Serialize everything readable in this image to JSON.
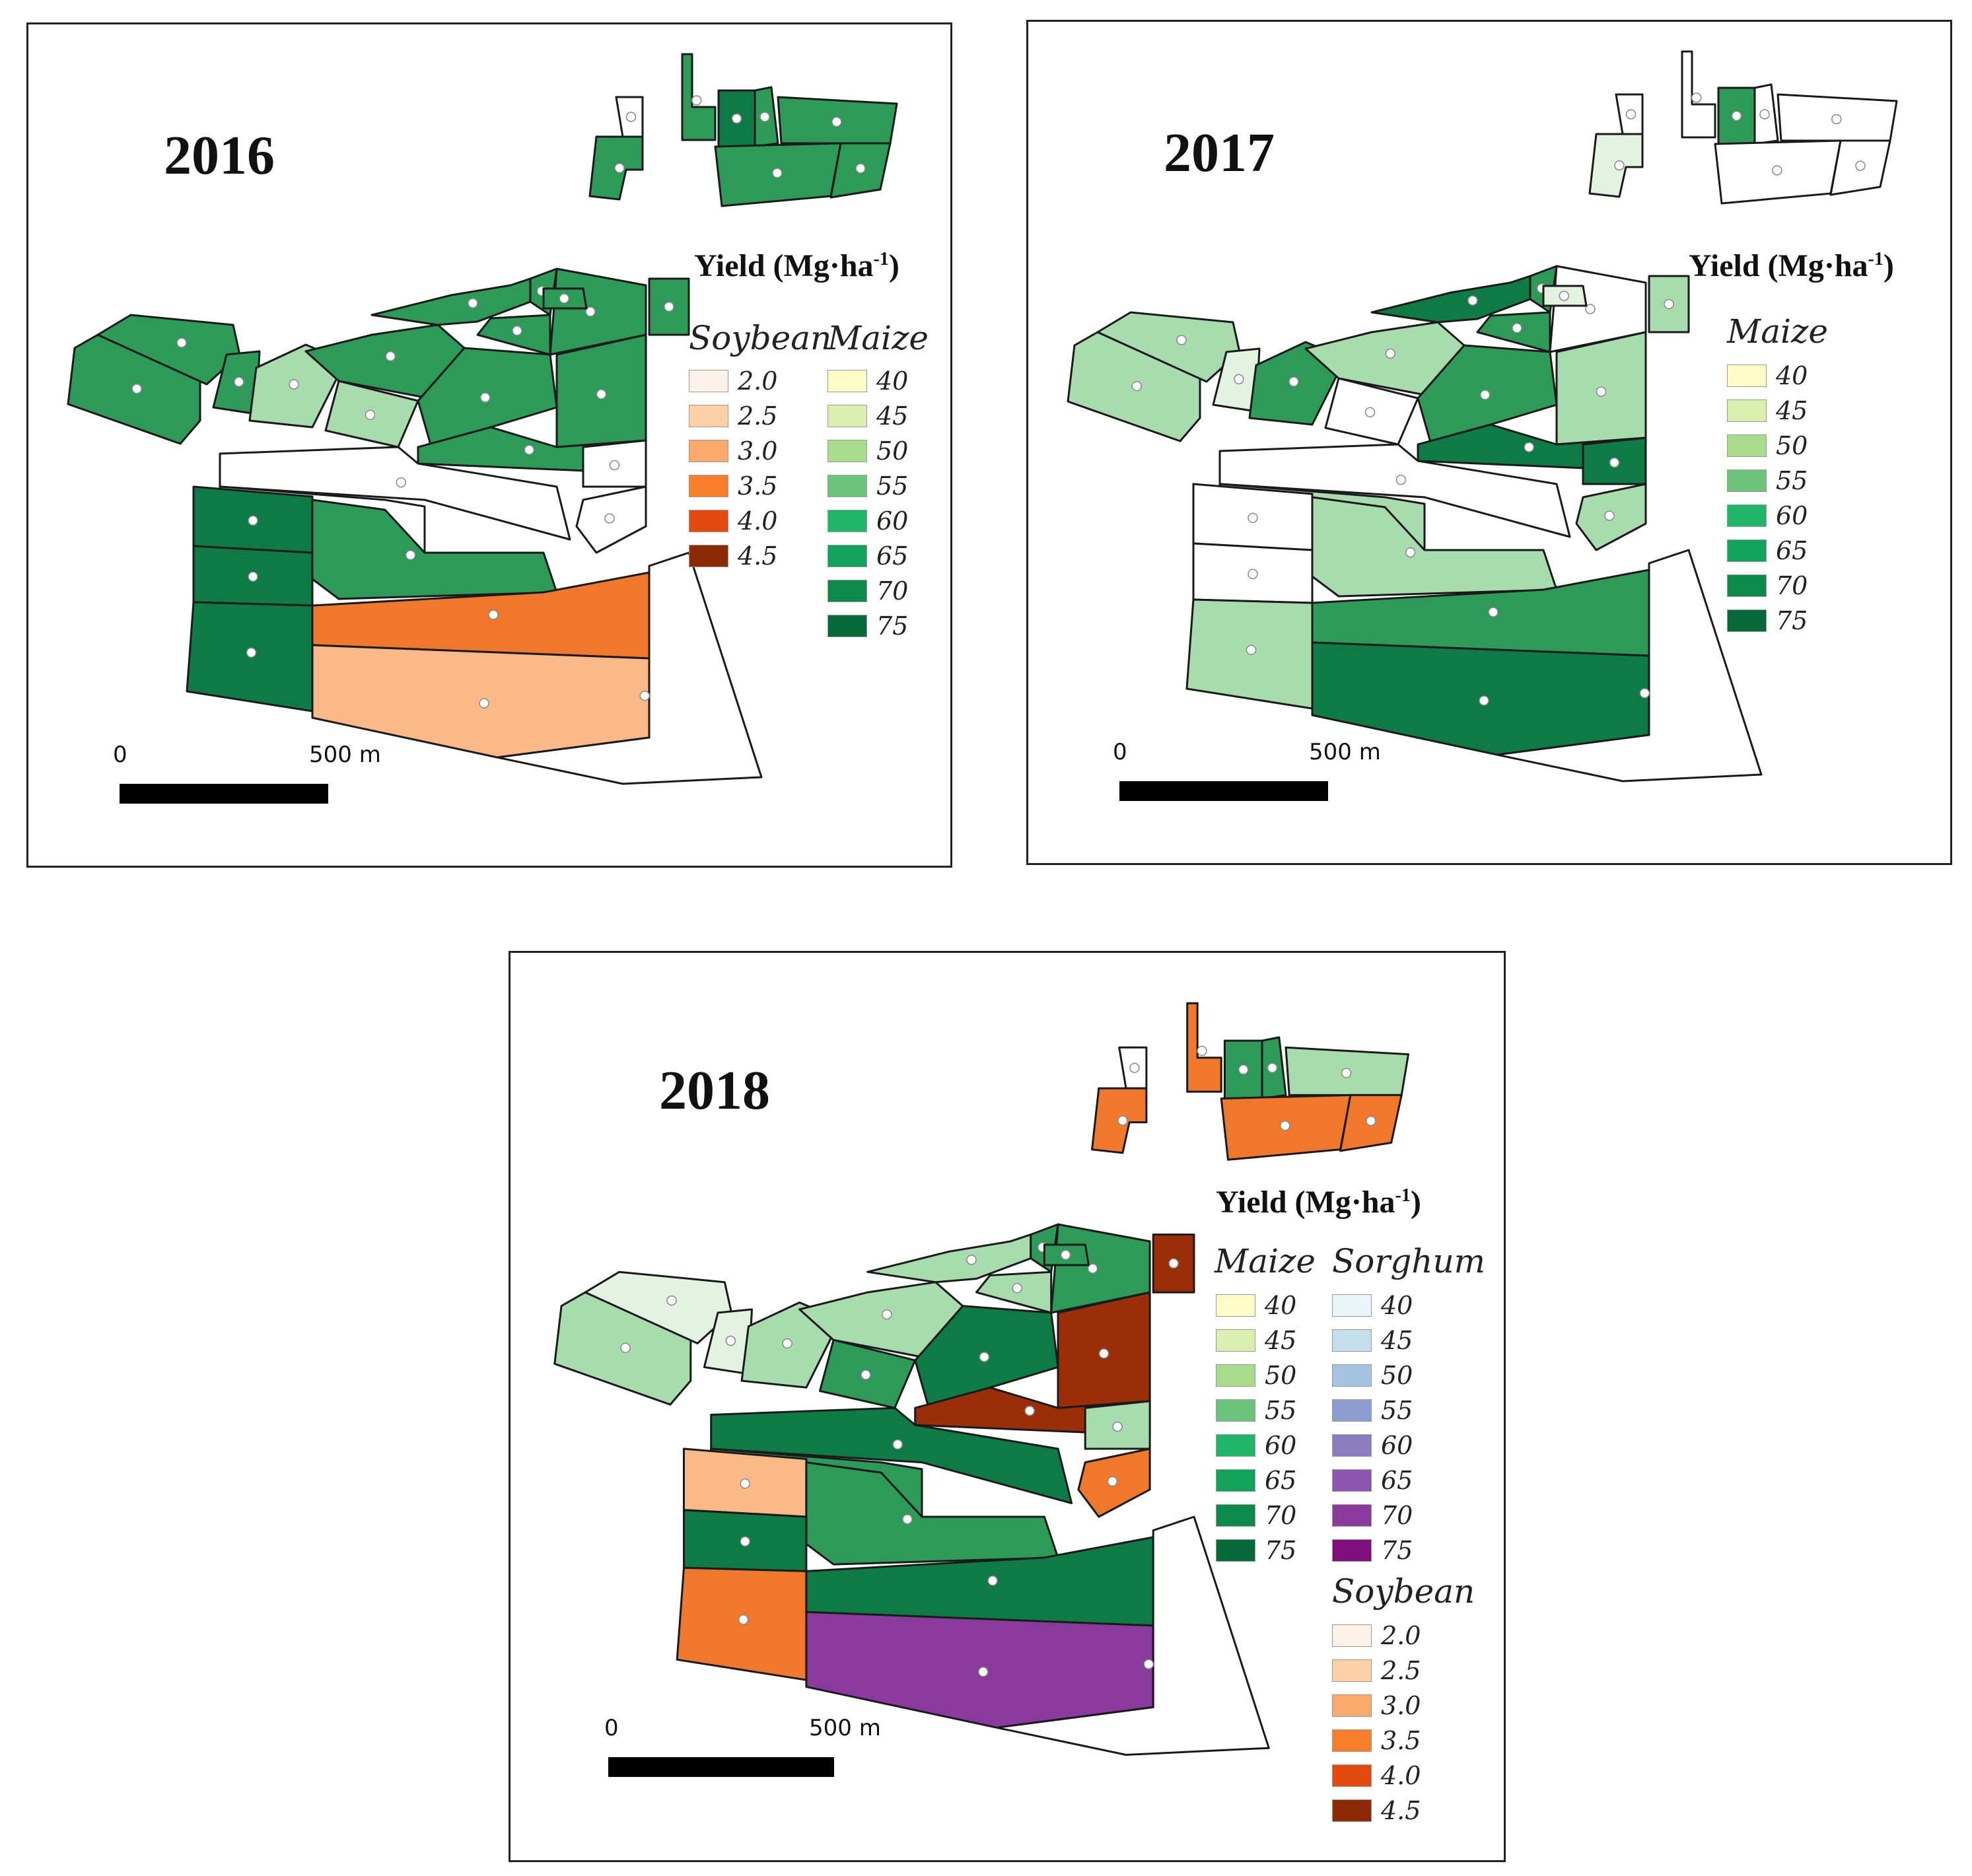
{
  "panels": {
    "p2016": {
      "year": "2016",
      "yield_title": "Yield (Mg·ha",
      "yield_sup": "-1",
      "yield_close": ")",
      "legend_cols": [
        {
          "title": "Soybean",
          "items": [
            {
              "v": "2.0",
              "c": "#fdf0e6"
            },
            {
              "v": "2.5",
              "c": "#fdd0a8"
            },
            {
              "v": "3.0",
              "c": "#fcaa6c"
            },
            {
              "v": "3.5",
              "c": "#f97e2c"
            },
            {
              "v": "4.0",
              "c": "#e34a0e"
            },
            {
              "v": "4.5",
              "c": "#8c2a06"
            }
          ]
        },
        {
          "title": "Maize",
          "items": [
            {
              "v": "40",
              "c": "#fdfcc8"
            },
            {
              "v": "45",
              "c": "#d8efb0"
            },
            {
              "v": "50",
              "c": "#a6dc8c"
            },
            {
              "v": "55",
              "c": "#6cc47c"
            },
            {
              "v": "60",
              "c": "#1fb66a"
            },
            {
              "v": "65",
              "c": "#12a25c"
            },
            {
              "v": "70",
              "c": "#0b8a4c"
            },
            {
              "v": "75",
              "c": "#06693a"
            }
          ]
        }
      ],
      "scale": {
        "zero": "0",
        "label": "500 m"
      }
    },
    "p2017": {
      "year": "2017",
      "yield_title": "Yield (Mg·ha",
      "yield_sup": "-1",
      "yield_close": ")",
      "legend_cols": [
        {
          "title": "Maize",
          "items": [
            {
              "v": "40",
              "c": "#fdfcc8"
            },
            {
              "v": "45",
              "c": "#d8efb0"
            },
            {
              "v": "50",
              "c": "#a6dc8c"
            },
            {
              "v": "55",
              "c": "#6cc47c"
            },
            {
              "v": "60",
              "c": "#1fb66a"
            },
            {
              "v": "65",
              "c": "#12a25c"
            },
            {
              "v": "70",
              "c": "#0b8a4c"
            },
            {
              "v": "75",
              "c": "#06693a"
            }
          ]
        }
      ],
      "scale": {
        "zero": "0",
        "label": "500 m"
      }
    },
    "p2018": {
      "year": "2018",
      "yield_title": "Yield (Mg·ha",
      "yield_sup": "-1",
      "yield_close": ")",
      "legend_cols": [
        {
          "title": "Maize",
          "items": [
            {
              "v": "40",
              "c": "#fdfcc8"
            },
            {
              "v": "45",
              "c": "#d8efb0"
            },
            {
              "v": "50",
              "c": "#a6dc8c"
            },
            {
              "v": "55",
              "c": "#6cc47c"
            },
            {
              "v": "60",
              "c": "#1fb66a"
            },
            {
              "v": "65",
              "c": "#12a25c"
            },
            {
              "v": "70",
              "c": "#0b8a4c"
            },
            {
              "v": "75",
              "c": "#06693a"
            }
          ]
        },
        {
          "title": "Sorghum",
          "items": [
            {
              "v": "40",
              "c": "#e8f6fa"
            },
            {
              "v": "45",
              "c": "#c4deec"
            },
            {
              "v": "50",
              "c": "#a4c4e2"
            },
            {
              "v": "55",
              "c": "#8c9ed0"
            },
            {
              "v": "60",
              "c": "#8c7cc0"
            },
            {
              "v": "65",
              "c": "#8c56b0"
            },
            {
              "v": "70",
              "c": "#8a3a9c"
            },
            {
              "v": "75",
              "c": "#7e0f7c"
            }
          ]
        },
        {
          "title": "Soybean",
          "items": [
            {
              "v": "2.0",
              "c": "#fdf0e6"
            },
            {
              "v": "2.5",
              "c": "#fdd0a8"
            },
            {
              "v": "3.0",
              "c": "#fcaa6c"
            },
            {
              "v": "3.5",
              "c": "#f97e2c"
            },
            {
              "v": "4.0",
              "c": "#e34a0e"
            },
            {
              "v": "4.5",
              "c": "#8c2a06"
            }
          ]
        }
      ],
      "scale": {
        "zero": "0",
        "label": "500 m"
      }
    }
  },
  "colors": {
    "maize_dark": "#0e7a45",
    "maize_mid": "#2e9a5a",
    "maize_light": "#a8dcae",
    "maize_pale": "#e2f3e2",
    "soy": "#f0782c",
    "soy_dark": "#9a2e08",
    "soy_light": "#fbb888",
    "sorghum": "#8a3a9c",
    "sorghum_light": "#c8e2ee",
    "empty": "#ffffff"
  }
}
